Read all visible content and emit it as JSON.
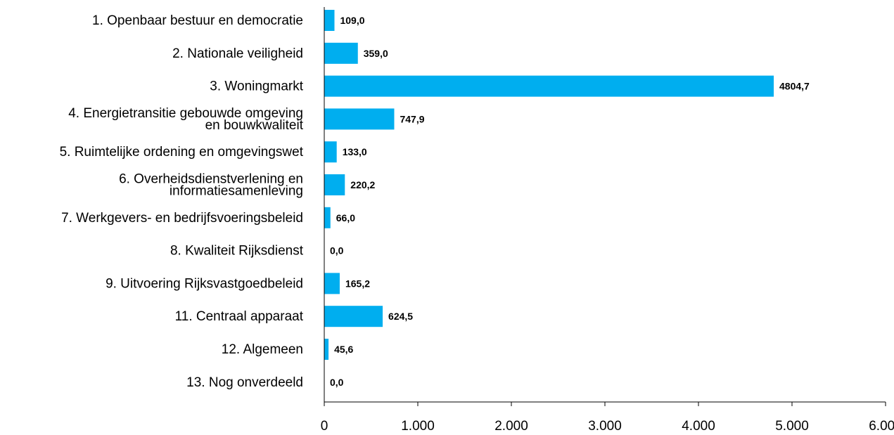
{
  "chart_data": {
    "type": "bar",
    "orientation": "horizontal",
    "categories": [
      [
        "1. Openbaar bestuur en democratie"
      ],
      [
        "2. Nationale veiligheid"
      ],
      [
        "3. Woningmarkt"
      ],
      [
        "4. Energietransitie gebouwde omgeving",
        "en bouwkwaliteit"
      ],
      [
        "5. Ruimtelijke ordening en omgevingswet"
      ],
      [
        "6. Overheidsdienstverlening en",
        "informatiesamenleving"
      ],
      [
        "7. Werkgevers- en bedrijfsvoeringsbeleid"
      ],
      [
        "8. Kwaliteit Rijksdienst"
      ],
      [
        "9. Uitvoering Rijksvastgoedbeleid"
      ],
      [
        "11. Centraal apparaat"
      ],
      [
        "12. Algemeen"
      ],
      [
        "13. Nog onverdeeld"
      ]
    ],
    "values": [
      109.0,
      359.0,
      4804.7,
      747.9,
      133.0,
      220.2,
      66.0,
      0.0,
      165.2,
      624.5,
      45.6,
      0.0
    ],
    "value_labels": [
      "109,0",
      "359,0",
      "4804,7",
      "747,9",
      "133,0",
      "220,2",
      "66,0",
      "0,0",
      "165,2",
      "624,5",
      "45,6",
      "0,0"
    ],
    "xlim": [
      0,
      6000
    ],
    "xticks": [
      0,
      1000,
      2000,
      3000,
      4000,
      5000,
      6000
    ],
    "xtick_labels": [
      "0",
      "1.000",
      "2.000",
      "3.000",
      "4.000",
      "5.000",
      "6.000"
    ],
    "bar_color": "#00aeef",
    "grid": false,
    "legend": "none",
    "title": "",
    "xlabel": "",
    "ylabel": ""
  }
}
